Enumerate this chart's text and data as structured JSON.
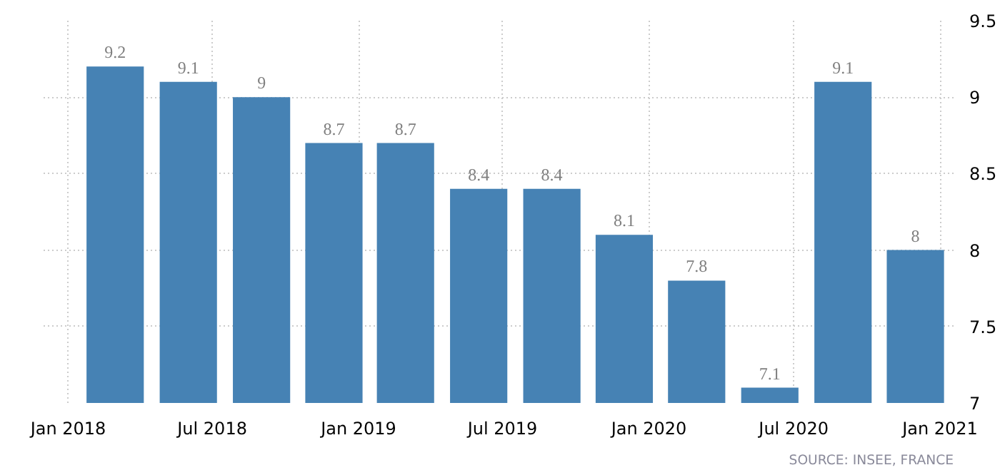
{
  "chart_data": {
    "type": "bar",
    "x": [
      "2018-03-01",
      "2018-06-01",
      "2018-09-01",
      "2018-12-01",
      "2019-03-01",
      "2019-06-01",
      "2019-09-01",
      "2019-12-01",
      "2020-03-01",
      "2020-06-01",
      "2020-09-01",
      "2020-12-01"
    ],
    "values": [
      9.2,
      9.1,
      9.0,
      8.7,
      8.7,
      8.4,
      8.4,
      8.1,
      7.8,
      7.1,
      9.1,
      8.0
    ],
    "color": "#4682b4",
    "data_labels": true,
    "xlim": [
      "2017-12-01",
      "2021-01-18"
    ],
    "xticks": [
      {
        "value": "2018-01-01",
        "label": "Jan 2018"
      },
      {
        "value": "2018-07-01",
        "label": "Jul 2018"
      },
      {
        "value": "2019-01-01",
        "label": "Jan 2019"
      },
      {
        "value": "2019-07-01",
        "label": "Jul 2019"
      },
      {
        "value": "2020-01-01",
        "label": "Jan 2020"
      },
      {
        "value": "2020-07-01",
        "label": "Jul 2020"
      },
      {
        "value": "2021-01-01",
        "label": "Jan 2021"
      }
    ],
    "ylim": [
      7,
      9.5
    ],
    "yticks": [
      7,
      7.5,
      8,
      8.5,
      9,
      9.5
    ],
    "grid": true,
    "annotations": [
      "SOURCE: INSEE, FRANCE"
    ]
  }
}
